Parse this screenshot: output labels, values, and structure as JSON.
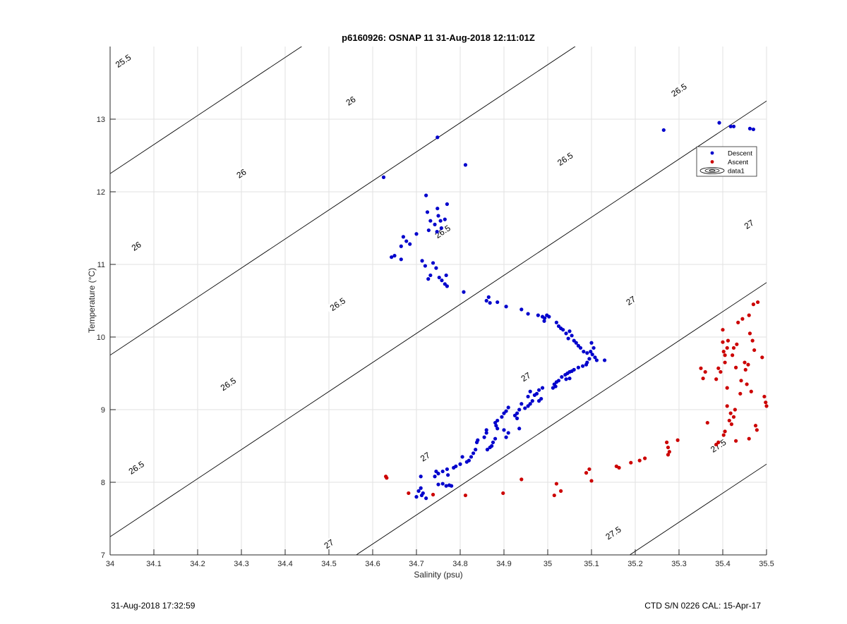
{
  "chart_data": {
    "type": "scatter",
    "title": "p6160926: OSNAP 11 31-Aug-2018 12:11:01Z",
    "xlabel": "Salinity (psu)",
    "ylabel": "Temperature (°C)",
    "xlim": [
      34,
      35.5
    ],
    "ylim": [
      7,
      14
    ],
    "xticks": [
      34,
      34.1,
      34.2,
      34.3,
      34.4,
      34.5,
      34.6,
      34.7,
      34.8,
      34.9,
      35,
      35.1,
      35.2,
      35.3,
      35.4,
      35.5
    ],
    "xtick_labels": [
      "34",
      "34.1",
      "34.2",
      "34.3",
      "34.4",
      "34.5",
      "34.6",
      "34.7",
      "34.8",
      "34.9",
      "35",
      "35.1",
      "35.2",
      "35.3",
      "35.4",
      "35.5"
    ],
    "yticks": [
      7,
      8,
      9,
      10,
      11,
      12,
      13
    ],
    "ytick_labels": [
      "7",
      "8",
      "9",
      "10",
      "11",
      "12",
      "13"
    ],
    "grid": true,
    "legend_position": "upper-right",
    "legend": [
      "Descent",
      "Ascent",
      "data1"
    ],
    "contour_labels": [
      {
        "text": "25.5",
        "x": 34.03,
        "y": 13.8
      },
      {
        "text": "26",
        "x": 34.55,
        "y": 13.25
      },
      {
        "text": "26",
        "x": 34.3,
        "y": 12.25
      },
      {
        "text": "26",
        "x": 34.06,
        "y": 11.25
      },
      {
        "text": "26.5",
        "x": 35.3,
        "y": 13.4
      },
      {
        "text": "26.5",
        "x": 35.04,
        "y": 12.45
      },
      {
        "text": "26.5",
        "x": 34.76,
        "y": 11.45
      },
      {
        "text": "26.5",
        "x": 34.52,
        "y": 10.45
      },
      {
        "text": "26.5",
        "x": 34.27,
        "y": 9.35
      },
      {
        "text": "26.5",
        "x": 34.06,
        "y": 8.2
      },
      {
        "text": "27",
        "x": 35.46,
        "y": 11.55
      },
      {
        "text": "27",
        "x": 35.19,
        "y": 10.5
      },
      {
        "text": "27",
        "x": 34.95,
        "y": 9.45
      },
      {
        "text": "27",
        "x": 34.72,
        "y": 8.35
      },
      {
        "text": "27",
        "x": 34.5,
        "y": 7.15
      },
      {
        "text": "27.5",
        "x": 35.39,
        "y": 8.5
      },
      {
        "text": "27.5",
        "x": 35.15,
        "y": 7.3
      }
    ],
    "series": [
      {
        "name": "Descent",
        "color": "#0000cc",
        "points": [
          [
            34.625,
            12.2
          ],
          [
            34.748,
            12.75
          ],
          [
            34.812,
            12.37
          ],
          [
            35.265,
            12.85
          ],
          [
            35.392,
            12.95
          ],
          [
            35.418,
            12.9
          ],
          [
            35.425,
            12.9
          ],
          [
            35.462,
            12.87
          ],
          [
            35.47,
            12.86
          ],
          [
            34.722,
            11.95
          ],
          [
            34.725,
            11.72
          ],
          [
            34.748,
            11.77
          ],
          [
            34.77,
            11.83
          ],
          [
            34.75,
            11.67
          ],
          [
            34.732,
            11.6
          ],
          [
            34.742,
            11.55
          ],
          [
            34.755,
            11.6
          ],
          [
            34.765,
            11.62
          ],
          [
            34.757,
            11.5
          ],
          [
            34.747,
            11.45
          ],
          [
            34.728,
            11.47
          ],
          [
            34.7,
            11.42
          ],
          [
            34.67,
            11.38
          ],
          [
            34.677,
            11.32
          ],
          [
            34.685,
            11.28
          ],
          [
            34.665,
            11.25
          ],
          [
            34.65,
            11.12
          ],
          [
            34.643,
            11.1
          ],
          [
            34.665,
            11.07
          ],
          [
            34.713,
            11.05
          ],
          [
            34.72,
            10.98
          ],
          [
            34.738,
            11.02
          ],
          [
            34.745,
            10.95
          ],
          [
            34.732,
            10.85
          ],
          [
            34.727,
            10.8
          ],
          [
            34.752,
            10.82
          ],
          [
            34.768,
            10.85
          ],
          [
            34.765,
            10.73
          ],
          [
            34.77,
            10.7
          ],
          [
            34.758,
            10.78
          ],
          [
            34.808,
            10.62
          ],
          [
            34.86,
            10.5
          ],
          [
            34.865,
            10.55
          ],
          [
            34.868,
            10.47
          ],
          [
            34.885,
            10.48
          ],
          [
            34.905,
            10.42
          ],
          [
            34.94,
            10.38
          ],
          [
            34.955,
            10.32
          ],
          [
            34.978,
            10.3
          ],
          [
            34.988,
            10.28
          ],
          [
            34.998,
            10.3
          ],
          [
            34.993,
            10.26
          ],
          [
            35.003,
            10.28
          ],
          [
            34.992,
            10.22
          ],
          [
            35.02,
            10.2
          ],
          [
            35.025,
            10.15
          ],
          [
            35.03,
            10.12
          ],
          [
            35.035,
            10.1
          ],
          [
            35.042,
            10.05
          ],
          [
            35.05,
            10.08
          ],
          [
            35.055,
            10.02
          ],
          [
            35.047,
            9.98
          ],
          [
            35.06,
            9.95
          ],
          [
            35.065,
            9.92
          ],
          [
            35.07,
            9.88
          ],
          [
            35.075,
            9.85
          ],
          [
            35.082,
            9.8
          ],
          [
            35.09,
            9.78
          ],
          [
            35.1,
            9.92
          ],
          [
            35.105,
            9.85
          ],
          [
            35.098,
            9.8
          ],
          [
            35.102,
            9.76
          ],
          [
            35.108,
            9.72
          ],
          [
            35.112,
            9.68
          ],
          [
            35.13,
            9.68
          ],
          [
            35.095,
            9.7
          ],
          [
            35.09,
            9.65
          ],
          [
            35.088,
            9.62
          ],
          [
            35.08,
            9.6
          ],
          [
            35.07,
            9.58
          ],
          [
            35.06,
            9.55
          ],
          [
            35.055,
            9.53
          ],
          [
            35.05,
            9.52
          ],
          [
            35.045,
            9.5
          ],
          [
            35.04,
            9.48
          ],
          [
            35.032,
            9.45
          ],
          [
            35.042,
            9.42
          ],
          [
            35.05,
            9.43
          ],
          [
            35.025,
            9.4
          ],
          [
            35.02,
            9.38
          ],
          [
            35.015,
            9.35
          ],
          [
            35.012,
            9.3
          ],
          [
            35.018,
            9.32
          ],
          [
            34.988,
            9.3
          ],
          [
            34.98,
            9.27
          ],
          [
            34.975,
            9.22
          ],
          [
            34.97,
            9.2
          ],
          [
            34.96,
            9.25
          ],
          [
            34.955,
            9.18
          ],
          [
            34.985,
            9.15
          ],
          [
            34.98,
            9.12
          ],
          [
            34.965,
            9.12
          ],
          [
            34.96,
            9.08
          ],
          [
            34.955,
            9.05
          ],
          [
            34.948,
            9.02
          ],
          [
            34.94,
            9.08
          ],
          [
            34.935,
            9.0
          ],
          [
            34.93,
            8.95
          ],
          [
            34.925,
            8.92
          ],
          [
            34.93,
            8.88
          ],
          [
            34.91,
            9.03
          ],
          [
            34.905,
            8.98
          ],
          [
            34.9,
            8.95
          ],
          [
            34.895,
            8.9
          ],
          [
            34.885,
            8.85
          ],
          [
            34.88,
            8.82
          ],
          [
            34.882,
            8.78
          ],
          [
            34.885,
            8.74
          ],
          [
            34.935,
            8.74
          ],
          [
            34.9,
            8.72
          ],
          [
            34.91,
            8.68
          ],
          [
            34.905,
            8.62
          ],
          [
            34.88,
            8.6
          ],
          [
            34.875,
            8.55
          ],
          [
            34.872,
            8.5
          ],
          [
            34.868,
            8.48
          ],
          [
            34.862,
            8.45
          ],
          [
            34.86,
            8.68
          ],
          [
            34.855,
            8.62
          ],
          [
            34.86,
            8.72
          ],
          [
            34.84,
            8.58
          ],
          [
            34.838,
            8.55
          ],
          [
            34.835,
            8.45
          ],
          [
            34.83,
            8.4
          ],
          [
            34.825,
            8.35
          ],
          [
            34.82,
            8.3
          ],
          [
            34.815,
            8.28
          ],
          [
            34.805,
            8.35
          ],
          [
            34.8,
            8.25
          ],
          [
            34.79,
            8.22
          ],
          [
            34.785,
            8.2
          ],
          [
            34.77,
            8.18
          ],
          [
            34.76,
            8.15
          ],
          [
            34.75,
            8.12
          ],
          [
            34.745,
            8.15
          ],
          [
            34.742,
            8.08
          ],
          [
            34.772,
            8.1
          ],
          [
            34.71,
            8.08
          ],
          [
            34.76,
            7.98
          ],
          [
            34.768,
            7.95
          ],
          [
            34.775,
            7.96
          ],
          [
            34.78,
            7.95
          ],
          [
            34.75,
            7.97
          ],
          [
            34.71,
            7.92
          ],
          [
            34.705,
            7.88
          ],
          [
            34.715,
            7.85
          ],
          [
            34.7,
            7.8
          ],
          [
            34.712,
            7.82
          ],
          [
            34.722,
            7.78
          ]
        ]
      },
      {
        "name": "Ascent",
        "color": "#cc0000",
        "points": [
          [
            34.63,
            8.08
          ],
          [
            34.632,
            8.06
          ],
          [
            34.682,
            7.85
          ],
          [
            34.738,
            7.83
          ],
          [
            34.812,
            7.82
          ],
          [
            34.898,
            7.85
          ],
          [
            34.94,
            8.04
          ],
          [
            35.015,
            7.82
          ],
          [
            35.02,
            7.98
          ],
          [
            35.03,
            7.88
          ],
          [
            35.088,
            8.13
          ],
          [
            35.095,
            8.18
          ],
          [
            35.1,
            8.02
          ],
          [
            35.157,
            8.22
          ],
          [
            35.163,
            8.2
          ],
          [
            35.19,
            8.27
          ],
          [
            35.21,
            8.3
          ],
          [
            35.222,
            8.33
          ],
          [
            35.272,
            8.55
          ],
          [
            35.275,
            8.48
          ],
          [
            35.278,
            8.42
          ],
          [
            35.275,
            8.38
          ],
          [
            35.297,
            8.58
          ],
          [
            35.35,
            9.57
          ],
          [
            35.355,
            9.43
          ],
          [
            35.36,
            9.52
          ],
          [
            35.365,
            8.82
          ],
          [
            35.385,
            9.42
          ],
          [
            35.39,
            9.57
          ],
          [
            35.395,
            9.52
          ],
          [
            35.4,
            10.1
          ],
          [
            35.4,
            9.93
          ],
          [
            35.402,
            9.8
          ],
          [
            35.405,
            9.75
          ],
          [
            35.41,
            9.85
          ],
          [
            35.412,
            9.95
          ],
          [
            35.405,
            9.65
          ],
          [
            35.41,
            9.3
          ],
          [
            35.41,
            9.05
          ],
          [
            35.405,
            8.7
          ],
          [
            35.402,
            8.65
          ],
          [
            35.415,
            8.85
          ],
          [
            35.42,
            8.8
          ],
          [
            35.425,
            8.9
          ],
          [
            35.428,
            9.0
          ],
          [
            35.418,
            8.95
          ],
          [
            35.422,
            9.75
          ],
          [
            35.425,
            9.85
          ],
          [
            35.43,
            9.58
          ],
          [
            35.432,
            9.9
          ],
          [
            35.435,
            10.2
          ],
          [
            35.44,
            9.22
          ],
          [
            35.442,
            9.4
          ],
          [
            35.445,
            10.25
          ],
          [
            35.45,
            9.65
          ],
          [
            35.452,
            9.55
          ],
          [
            35.455,
            9.35
          ],
          [
            35.458,
            9.62
          ],
          [
            35.46,
            10.3
          ],
          [
            35.462,
            10.05
          ],
          [
            35.465,
            9.25
          ],
          [
            35.468,
            9.95
          ],
          [
            35.47,
            10.45
          ],
          [
            35.472,
            9.82
          ],
          [
            35.475,
            8.78
          ],
          [
            35.478,
            8.72
          ],
          [
            35.48,
            10.48
          ],
          [
            35.49,
            9.72
          ],
          [
            35.495,
            9.18
          ],
          [
            35.498,
            9.1
          ],
          [
            35.5,
            9.05
          ],
          [
            35.43,
            8.57
          ],
          [
            35.46,
            8.6
          ],
          [
            35.39,
            8.55
          ],
          [
            35.385,
            8.52
          ]
        ]
      }
    ]
  },
  "footer": {
    "left": "31-Aug-2018 17:32:59",
    "right": "CTD S/N 0226  CAL: 15-Apr-17"
  }
}
